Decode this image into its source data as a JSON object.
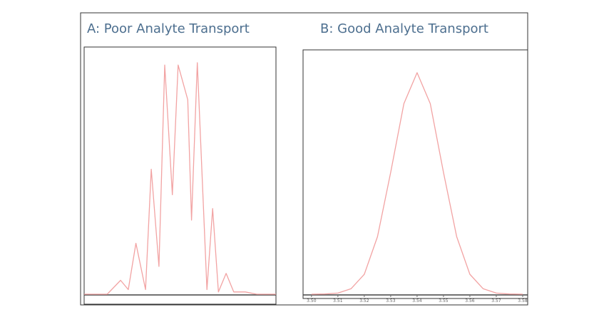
{
  "chart_data": [
    {
      "type": "line",
      "title": "A: Poor Analyte Transport",
      "color": "#f2a3a3",
      "x": [
        0,
        12,
        19,
        23,
        27,
        32,
        35,
        39,
        42,
        46,
        49,
        54,
        56,
        59,
        64,
        67,
        70,
        74,
        78,
        84,
        90,
        100
      ],
      "values": [
        0,
        0,
        6,
        2,
        22,
        2,
        54,
        12,
        99,
        43,
        99,
        84,
        32,
        100,
        2,
        37,
        1,
        9,
        1,
        1,
        0,
        0
      ],
      "xlim": [
        0,
        100
      ],
      "ylim": [
        0,
        100
      ]
    },
    {
      "type": "line",
      "title": "B: Good Analyte Transport",
      "color": "#f2a3a3",
      "x": [
        3.5,
        3.505,
        3.51,
        3.515,
        3.52,
        3.525,
        3.53,
        3.535,
        3.54,
        3.545,
        3.55,
        3.555,
        3.56,
        3.565,
        3.57,
        3.575,
        3.58
      ],
      "values": [
        0,
        0.1,
        0.5,
        2.5,
        9,
        26,
        55,
        86,
        100,
        86,
        55,
        26,
        9,
        2.5,
        0.5,
        0.1,
        0
      ],
      "xlim": [
        3.4968,
        3.5819
      ],
      "ylim": [
        0,
        100
      ],
      "xticks": [
        {
          "value": 3.5,
          "label": "3.50"
        },
        {
          "value": 3.51,
          "label": "3.51"
        },
        {
          "value": 3.52,
          "label": "3.52"
        },
        {
          "value": 3.53,
          "label": "3.53"
        },
        {
          "value": 3.54,
          "label": "3.54"
        },
        {
          "value": 3.55,
          "label": "3.55"
        },
        {
          "value": 3.56,
          "label": "3.56"
        },
        {
          "value": 3.57,
          "label": "3.57"
        },
        {
          "value": 3.58,
          "label": "3.58"
        }
      ]
    }
  ]
}
